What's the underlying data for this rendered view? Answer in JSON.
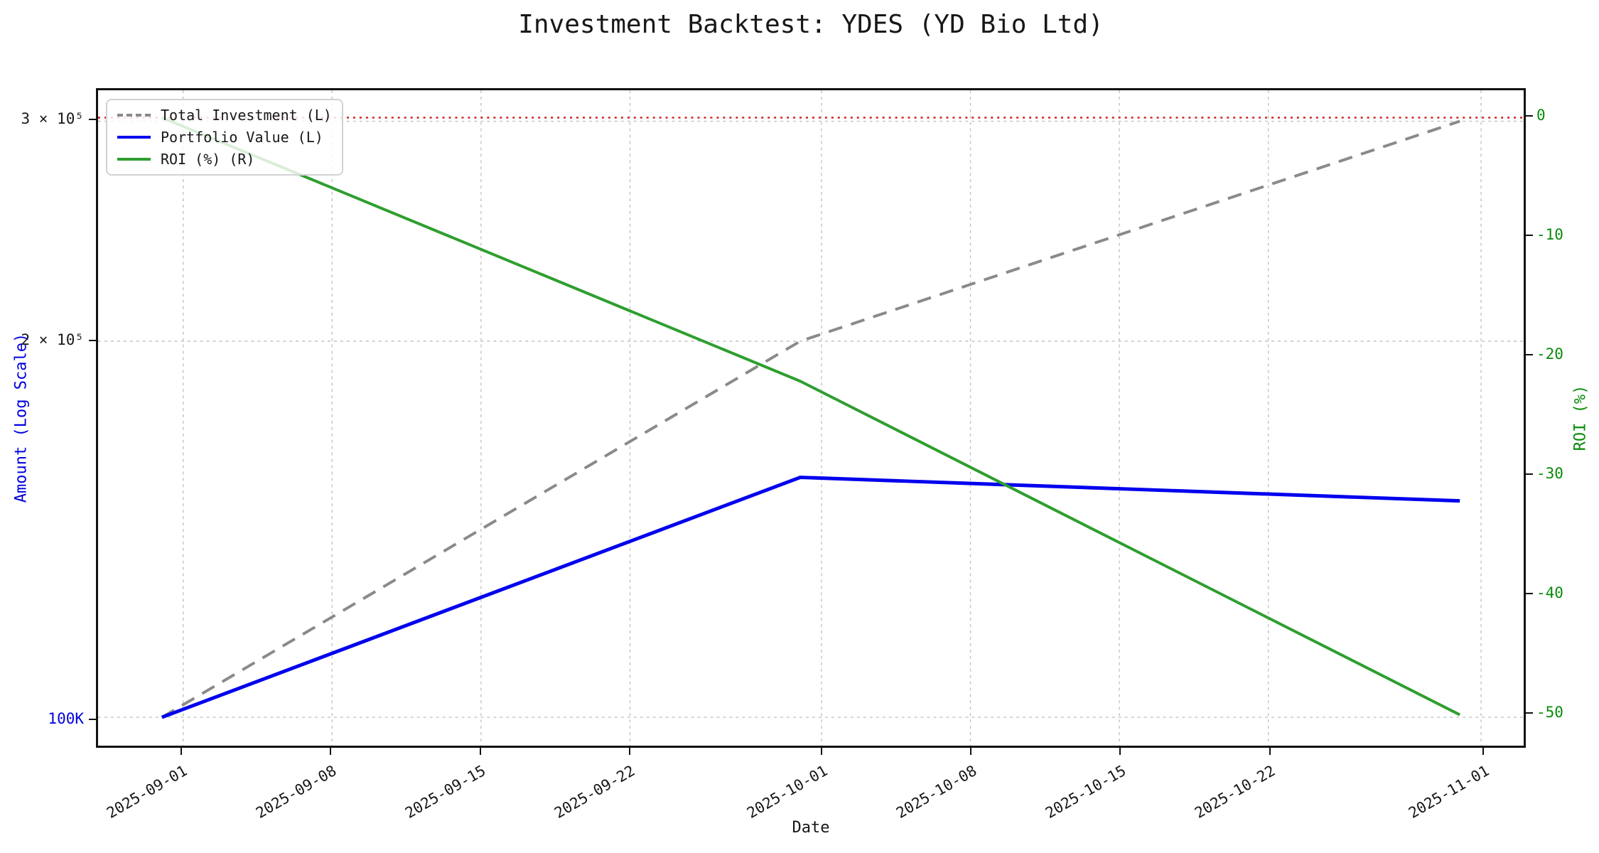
{
  "chart_data": {
    "type": "line",
    "title": "Investment Backtest: YDES (YD Bio Ltd)",
    "xlabel": "Date",
    "x_axis": {
      "min": "2025-08-28",
      "max": "2025-11-03",
      "tick_dates": [
        "2025-09-01",
        "2025-09-08",
        "2025-09-15",
        "2025-09-22",
        "2025-10-01",
        "2025-10-08",
        "2025-10-15",
        "2025-10-22",
        "2025-11-01"
      ],
      "tick_rotation_deg": 30
    },
    "left_axis": {
      "label": "Amount (Log Scale)",
      "scale": "log",
      "color": "#0000dd",
      "min": 94900,
      "max": 317600,
      "ticks": [
        {
          "value": 100000,
          "label": "100K",
          "color": "#0000dd"
        },
        {
          "value": 200000,
          "label": "2 × 10⁵",
          "color": "#1a1a1a"
        },
        {
          "value": 300000,
          "label": "3 × 10⁵",
          "color": "#1a1a1a"
        }
      ]
    },
    "right_axis": {
      "label": "ROI (%)",
      "scale": "linear",
      "color": "#0a8a0a",
      "min": -52.9,
      "max": 2.3,
      "ticks": [
        {
          "value": 0,
          "label": "0"
        },
        {
          "value": -10,
          "label": "-10"
        },
        {
          "value": -20,
          "label": "-20"
        },
        {
          "value": -30,
          "label": "-30"
        },
        {
          "value": -40,
          "label": "-40"
        },
        {
          "value": -50,
          "label": "-50"
        }
      ]
    },
    "x_dates": [
      "2025-08-31",
      "2025-09-30",
      "2025-10-31"
    ],
    "series": [
      {
        "name": "Total Investment (L)",
        "axis": "left",
        "color": "#8a8a8a",
        "style": "dashed",
        "width": 4,
        "values": [
          100000,
          200000,
          300000
        ]
      },
      {
        "name": "Portfolio Value (L)",
        "axis": "left",
        "color": "#0000ee",
        "style": "solid",
        "width": 5,
        "values": [
          100000,
          155600,
          149000
        ]
      },
      {
        "name": "ROI (%) (R)",
        "axis": "right",
        "color": "#2e9e2e",
        "style": "solid",
        "width": 4,
        "values": [
          0,
          -22.2,
          -50.3
        ]
      }
    ],
    "reference_line": {
      "axis": "right",
      "value": 0,
      "color": "#cc2222",
      "style": "dotted",
      "width": 2.5
    },
    "legend": {
      "position": "upper left"
    },
    "grid": {
      "x": true,
      "left_y": true,
      "right_y": false,
      "color": "#c2c2c2"
    }
  }
}
